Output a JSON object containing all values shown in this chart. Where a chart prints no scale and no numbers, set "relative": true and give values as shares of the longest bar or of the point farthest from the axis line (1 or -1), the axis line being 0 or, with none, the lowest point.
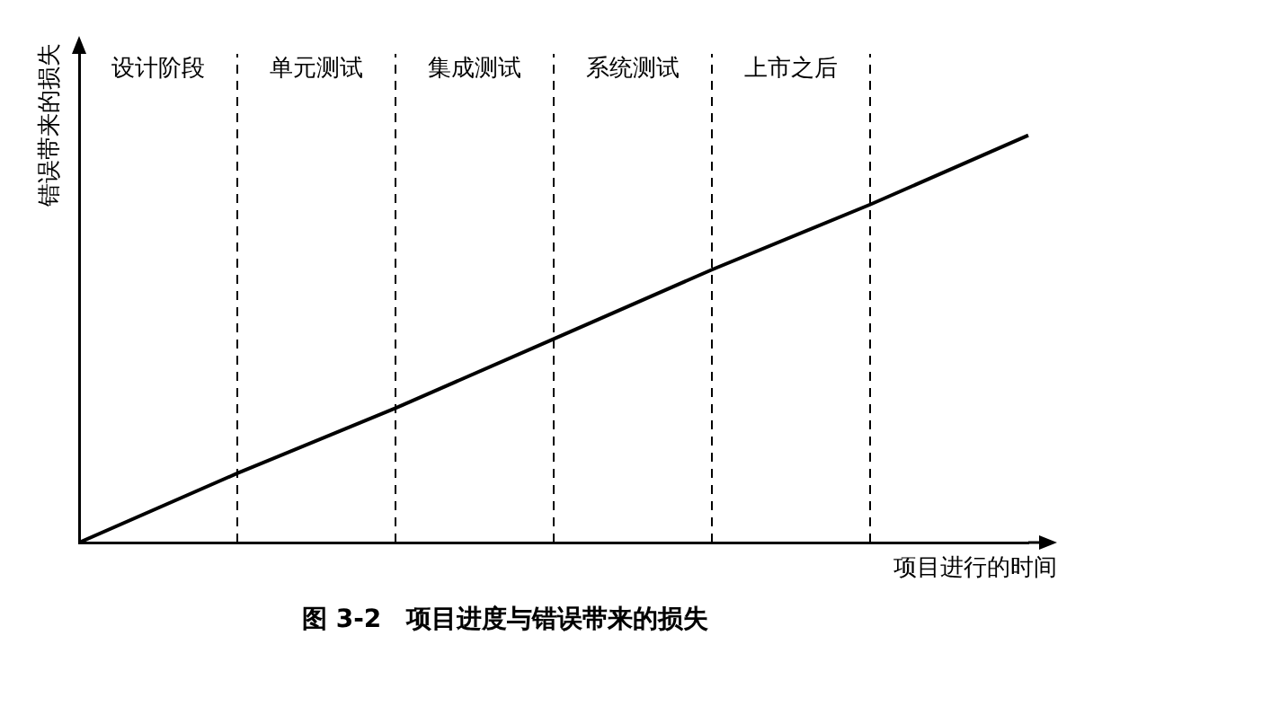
{
  "chart_data": {
    "type": "line",
    "relative": true,
    "title": "图 3-2　项目进度与错误带来的损失",
    "xlabel": "项目进行的时间",
    "ylabel": "错误带来的损失",
    "categories": [
      null,
      null,
      null,
      null,
      null,
      null,
      null
    ],
    "values": [
      0,
      0.17,
      0.33,
      0.5,
      0.67,
      0.83,
      1
    ],
    "color": "#000000",
    "marker": "none",
    "grid": "x",
    "legend": false,
    "annotations": [
      "设计阶段",
      "单元测试",
      "集成测试",
      "系统测试",
      "上市之后"
    ]
  }
}
